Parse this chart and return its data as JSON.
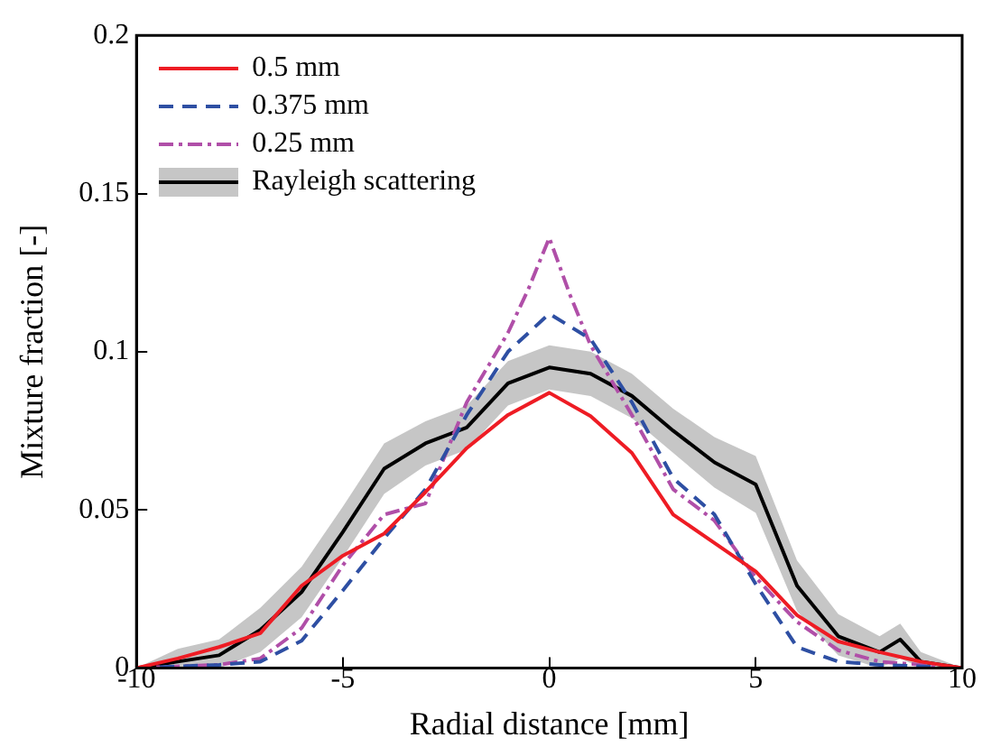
{
  "chart_data": {
    "type": "line",
    "xlabel": "Radial distance [mm]",
    "ylabel": "Mixture fraction [-]",
    "xlim": [
      -10,
      10
    ],
    "ylim": [
      0,
      0.2
    ],
    "xticks": [
      -10,
      -5,
      0,
      5,
      10
    ],
    "yticks": [
      0,
      0.05,
      0.1,
      0.15,
      0.2
    ],
    "grid": false,
    "legend": "top left",
    "marker": "none",
    "x": [
      -10,
      -9,
      -8,
      -7,
      -6,
      -5,
      -4,
      -3,
      -2,
      -1,
      0,
      1,
      2,
      3,
      4,
      5,
      6,
      7,
      8,
      9,
      10
    ],
    "series": [
      {
        "name": "0.5 mm",
        "color": "#ee1c24",
        "line_style": "solid",
        "values": [
          0,
          0.003,
          0.0066,
          0.011,
          0.026,
          0.0355,
          0.0425,
          0.0556,
          0.0695,
          0.08,
          0.087,
          0.0796,
          0.068,
          0.0485,
          0.0395,
          0.0305,
          0.0167,
          0.0084,
          0.005,
          0.002,
          0
        ]
      },
      {
        "name": "0.375 mm",
        "color": "#2e4fa3",
        "line_style": "dashed",
        "values": [
          0,
          0.0005,
          0.001,
          0.002,
          0.0086,
          0.0245,
          0.041,
          0.0565,
          0.08,
          0.1,
          0.112,
          0.104,
          0.084,
          0.06,
          0.0485,
          0.0265,
          0.0066,
          0.002,
          0.001,
          0.0005,
          0
        ]
      },
      {
        "name": "0.25 mm",
        "color": "#b04fa8",
        "line_style": "dashdot",
        "x": [
          -10,
          -9,
          -8,
          -7,
          -6,
          -5,
          -4,
          -3,
          -2,
          -1,
          -0.5,
          0,
          0.5,
          1,
          2,
          3,
          4,
          5,
          6,
          7,
          8,
          9,
          10
        ],
        "values": [
          0,
          0.0005,
          0.001,
          0.003,
          0.0126,
          0.0325,
          0.0485,
          0.052,
          0.084,
          0.106,
          0.12,
          0.136,
          0.118,
          0.102,
          0.08,
          0.0565,
          0.0466,
          0.0286,
          0.0146,
          0.0056,
          0.002,
          0.001,
          0
        ]
      },
      {
        "name": "Rayleigh scattering",
        "color": "#000000",
        "line_style": "solid",
        "x": [
          -10,
          -9,
          -8,
          -7,
          -6,
          -5,
          -4,
          -3,
          -2,
          -1,
          0,
          1,
          2,
          3,
          4,
          5,
          6,
          7,
          8,
          8.5,
          9,
          10
        ],
        "values": [
          0,
          0.002,
          0.004,
          0.012,
          0.024,
          0.043,
          0.063,
          0.071,
          0.076,
          0.09,
          0.095,
          0.093,
          0.086,
          0.075,
          0.065,
          0.058,
          0.026,
          0.01,
          0.005,
          0.009,
          0.002,
          0
        ],
        "lower": [
          0,
          0,
          0,
          0.005,
          0.016,
          0.035,
          0.055,
          0.064,
          0.069,
          0.083,
          0.088,
          0.086,
          0.079,
          0.068,
          0.057,
          0.049,
          0.018,
          0.004,
          0,
          0.003,
          0,
          0
        ],
        "upper": [
          0,
          0.006,
          0.009,
          0.019,
          0.032,
          0.051,
          0.071,
          0.078,
          0.083,
          0.097,
          0.102,
          0.1,
          0.093,
          0.082,
          0.073,
          0.067,
          0.034,
          0.017,
          0.01,
          0.014,
          0.005,
          0
        ]
      }
    ]
  }
}
